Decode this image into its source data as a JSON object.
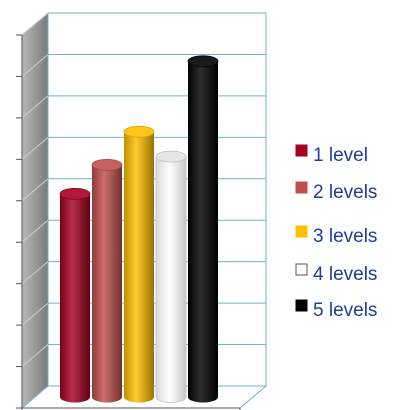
{
  "chart_data": {
    "type": "bar",
    "style": "3d-cylinder",
    "categories": [
      "1 level",
      "2 levels",
      "3 levels",
      "4 levels",
      "5 levels"
    ],
    "values": [
      4.9,
      5.6,
      6.4,
      5.8,
      8.1
    ],
    "colors": [
      "#a50021",
      "#c0504d",
      "#ffc000",
      "#ffffff",
      "#000000"
    ],
    "ylim": [
      0,
      9
    ],
    "grid": true,
    "legend": "right",
    "legend_text_color": "#1f3d99",
    "grid_color": "#6fb3c6",
    "wall_color": "#8c8c8c"
  }
}
